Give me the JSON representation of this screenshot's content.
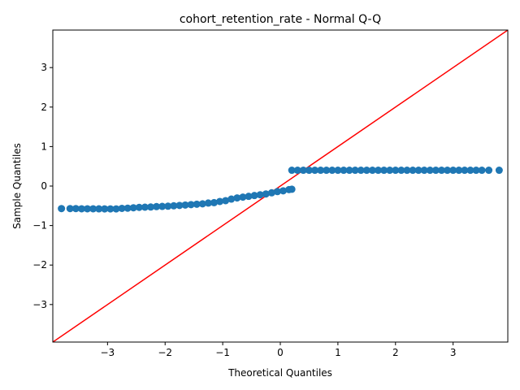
{
  "chart_data": {
    "type": "scatter",
    "title": "cohort_retention_rate - Normal Q-Q",
    "xlabel": "Theoretical Quantiles",
    "ylabel": "Sample Quantiles",
    "xlim": [
      -3.95,
      3.95
    ],
    "ylim": [
      -3.95,
      3.95
    ],
    "xticks": [
      -3,
      -2,
      -1,
      0,
      1,
      2,
      3
    ],
    "yticks": [
      -3,
      -2,
      -1,
      0,
      1,
      2,
      3
    ],
    "tick_labels": {
      "x": [
        "−3",
        "−2",
        "−1",
        "0",
        "1",
        "2",
        "3"
      ],
      "y": [
        "−3",
        "−2",
        "−1",
        "0",
        "1",
        "2",
        "3"
      ]
    },
    "grid": false,
    "reference_line": {
      "type": "45-degree",
      "slope": 1,
      "intercept": 0,
      "color": "#ff0000"
    },
    "series": [
      {
        "color": "#1f77b4",
        "points": [
          [
            -3.8,
            -0.57
          ],
          [
            -3.65,
            -0.57
          ],
          [
            -3.55,
            -0.57
          ],
          [
            -3.45,
            -0.575
          ],
          [
            -3.35,
            -0.575
          ],
          [
            -3.25,
            -0.575
          ],
          [
            -3.15,
            -0.577
          ],
          [
            -3.05,
            -0.578
          ],
          [
            -2.95,
            -0.578
          ],
          [
            -2.85,
            -0.578
          ],
          [
            -2.75,
            -0.565
          ],
          [
            -2.65,
            -0.56
          ],
          [
            -2.55,
            -0.55
          ],
          [
            -2.45,
            -0.54
          ],
          [
            -2.35,
            -0.535
          ],
          [
            -2.25,
            -0.53
          ],
          [
            -2.15,
            -0.52
          ],
          [
            -2.05,
            -0.515
          ],
          [
            -1.95,
            -0.51
          ],
          [
            -1.85,
            -0.5
          ],
          [
            -1.75,
            -0.49
          ],
          [
            -1.65,
            -0.48
          ],
          [
            -1.55,
            -0.47
          ],
          [
            -1.45,
            -0.46
          ],
          [
            -1.35,
            -0.45
          ],
          [
            -1.25,
            -0.43
          ],
          [
            -1.15,
            -0.42
          ],
          [
            -1.05,
            -0.39
          ],
          [
            -0.95,
            -0.37
          ],
          [
            -0.85,
            -0.33
          ],
          [
            -0.75,
            -0.3
          ],
          [
            -0.65,
            -0.28
          ],
          [
            -0.55,
            -0.26
          ],
          [
            -0.45,
            -0.24
          ],
          [
            -0.35,
            -0.22
          ],
          [
            -0.25,
            -0.2
          ],
          [
            -0.15,
            -0.17
          ],
          [
            -0.05,
            -0.14
          ],
          [
            0.05,
            -0.12
          ],
          [
            0.15,
            -0.09
          ],
          [
            0.2,
            -0.08
          ],
          [
            0.2,
            0.4
          ],
          [
            0.3,
            0.4
          ],
          [
            0.4,
            0.4
          ],
          [
            0.5,
            0.4
          ],
          [
            0.6,
            0.4
          ],
          [
            0.7,
            0.4
          ],
          [
            0.8,
            0.4
          ],
          [
            0.9,
            0.4
          ],
          [
            1.0,
            0.4
          ],
          [
            1.1,
            0.4
          ],
          [
            1.2,
            0.4
          ],
          [
            1.3,
            0.4
          ],
          [
            1.4,
            0.4
          ],
          [
            1.5,
            0.4
          ],
          [
            1.6,
            0.4
          ],
          [
            1.7,
            0.4
          ],
          [
            1.8,
            0.4
          ],
          [
            1.9,
            0.4
          ],
          [
            2.0,
            0.4
          ],
          [
            2.1,
            0.4
          ],
          [
            2.2,
            0.4
          ],
          [
            2.3,
            0.4
          ],
          [
            2.4,
            0.4
          ],
          [
            2.5,
            0.4
          ],
          [
            2.6,
            0.4
          ],
          [
            2.7,
            0.4
          ],
          [
            2.8,
            0.4
          ],
          [
            2.9,
            0.4
          ],
          [
            3.0,
            0.4
          ],
          [
            3.1,
            0.4
          ],
          [
            3.2,
            0.4
          ],
          [
            3.3,
            0.4
          ],
          [
            3.4,
            0.4
          ],
          [
            3.5,
            0.4
          ],
          [
            3.62,
            0.4
          ],
          [
            3.8,
            0.4
          ]
        ]
      }
    ]
  }
}
